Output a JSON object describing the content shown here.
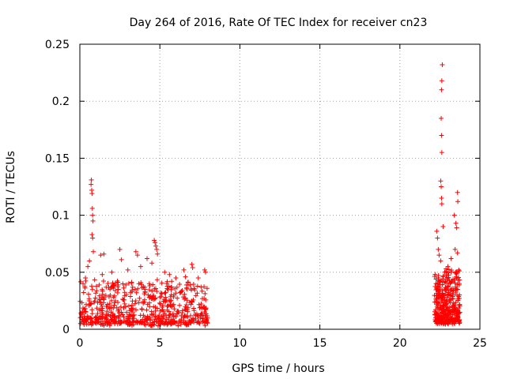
{
  "chart_data": {
    "type": "scatter",
    "title": "Day 264 of 2016, Rate Of TEC Index for receiver cn23",
    "xlabel": "GPS time / hours",
    "ylabel": "ROTI / TECUs",
    "xlim": [
      0,
      25
    ],
    "ylim": [
      0,
      0.25
    ],
    "grid": true,
    "marker": "+",
    "color": "#ff0000",
    "xticks": [
      {
        "value": 0,
        "label": "0"
      },
      {
        "value": 5,
        "label": "5"
      },
      {
        "value": 10,
        "label": "10"
      },
      {
        "value": 15,
        "label": "15"
      },
      {
        "value": 20,
        "label": "20"
      },
      {
        "value": 25,
        "label": "25"
      }
    ],
    "yticks": [
      {
        "value": 0,
        "label": "0"
      },
      {
        "value": 0.05,
        "label": "0.05"
      },
      {
        "value": 0.1,
        "label": "0.1"
      },
      {
        "value": 0.15,
        "label": "0.15"
      },
      {
        "value": 0.2,
        "label": "0.2"
      },
      {
        "value": 0.25,
        "label": "0.25"
      }
    ],
    "series": [
      {
        "name": "ROTI",
        "points": [
          [
            0.7,
            0.127
          ],
          [
            0.72,
            0.131
          ],
          [
            0.74,
            0.122
          ],
          [
            0.76,
            0.119
          ],
          [
            0.78,
            0.106
          ],
          [
            0.8,
            0.1
          ],
          [
            0.82,
            0.095
          ],
          [
            0.76,
            0.083
          ],
          [
            0.8,
            0.08
          ],
          [
            0.84,
            0.068
          ],
          [
            0.5,
            0.055
          ],
          [
            0.6,
            0.06
          ],
          [
            0.2,
            0.04
          ],
          [
            0.35,
            0.045
          ],
          [
            1.3,
            0.065
          ],
          [
            1.5,
            0.066
          ],
          [
            1.4,
            0.048
          ],
          [
            2.0,
            0.05
          ],
          [
            2.5,
            0.07
          ],
          [
            2.6,
            0.061
          ],
          [
            3.0,
            0.052
          ],
          [
            3.5,
            0.068
          ],
          [
            3.6,
            0.065
          ],
          [
            3.8,
            0.055
          ],
          [
            4.2,
            0.062
          ],
          [
            4.5,
            0.058
          ],
          [
            4.65,
            0.078
          ],
          [
            4.7,
            0.076
          ],
          [
            4.75,
            0.073
          ],
          [
            4.8,
            0.07
          ],
          [
            4.85,
            0.066
          ],
          [
            5.3,
            0.05
          ],
          [
            5.6,
            0.048
          ],
          [
            6.0,
            0.045
          ],
          [
            6.5,
            0.052
          ],
          [
            6.6,
            0.046
          ],
          [
            7.0,
            0.057
          ],
          [
            7.05,
            0.054
          ],
          [
            7.4,
            0.045
          ],
          [
            7.8,
            0.052
          ],
          [
            7.85,
            0.05
          ],
          [
            22.3,
            0.086
          ],
          [
            22.35,
            0.08
          ],
          [
            22.4,
            0.07
          ],
          [
            22.45,
            0.065
          ],
          [
            22.55,
            0.06
          ],
          [
            22.6,
            0.21
          ],
          [
            22.62,
            0.218
          ],
          [
            22.65,
            0.232
          ],
          [
            22.58,
            0.185
          ],
          [
            22.6,
            0.17
          ],
          [
            22.62,
            0.155
          ],
          [
            22.55,
            0.13
          ],
          [
            22.58,
            0.125
          ],
          [
            22.6,
            0.115
          ],
          [
            22.62,
            0.11
          ],
          [
            22.7,
            0.09
          ],
          [
            22.8,
            0.05
          ],
          [
            23.0,
            0.055
          ],
          [
            23.2,
            0.062
          ],
          [
            23.4,
            0.1
          ],
          [
            23.6,
            0.12
          ],
          [
            23.62,
            0.112
          ],
          [
            23.5,
            0.093
          ],
          [
            23.55,
            0.089
          ],
          [
            23.45,
            0.07
          ],
          [
            23.6,
            0.067
          ]
        ],
        "bands": [
          {
            "from": 0.0,
            "to": 8.0,
            "min": 0.003,
            "max": 0.04,
            "count": 650
          },
          {
            "from": 22.15,
            "to": 22.85,
            "min": 0.004,
            "max": 0.048,
            "count": 170
          },
          {
            "from": 22.85,
            "to": 23.75,
            "min": 0.004,
            "max": 0.05,
            "count": 210
          }
        ]
      }
    ]
  }
}
